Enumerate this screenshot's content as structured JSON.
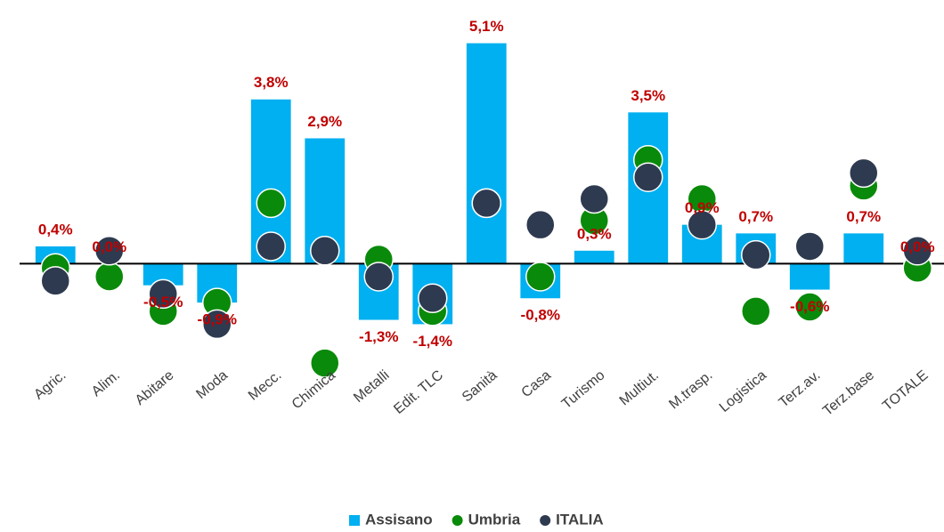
{
  "chart_data": {
    "type": "bar",
    "categories": [
      "Agric.",
      "Alim.",
      "Abitare",
      "Moda",
      "Mecc.",
      "Chimica",
      "Metalli",
      "Edit. TLC",
      "Sanità",
      "Casa",
      "Turismo",
      "Multiut.",
      "M.trasp.",
      "Logistica",
      "Terz.av.",
      "Terz.base",
      "TOTALE"
    ],
    "series": [
      {
        "name": "Assisano",
        "type": "bar",
        "color": "#00b0f0",
        "values": [
          0.4,
          0.0,
          -0.5,
          -0.9,
          3.8,
          2.9,
          -1.3,
          -1.4,
          5.1,
          -0.8,
          0.3,
          3.5,
          0.9,
          0.7,
          -0.6,
          0.7,
          0.0
        ],
        "value_labels": [
          "0,4%",
          "0,0%",
          "-0,5%",
          "-0,9%",
          "3,8%",
          "2,9%",
          "-1,3%",
          "-1,4%",
          "5,1%",
          "-0,8%",
          "0,3%",
          "3,5%",
          "0,9%",
          "0,7%",
          "-0,6%",
          "0,7%",
          "0,0%"
        ]
      },
      {
        "name": "Umbria",
        "type": "scatter",
        "color": "#0a8a0a",
        "values": [
          -0.1,
          -0.3,
          -1.1,
          -0.9,
          1.4,
          -2.3,
          0.1,
          -1.1,
          1.4,
          -0.3,
          1.0,
          2.4,
          1.5,
          -1.1,
          -1.0,
          1.8,
          -0.1
        ]
      },
      {
        "name": "ITALIA",
        "type": "scatter",
        "color": "#2e3a4f",
        "values": [
          -0.4,
          0.3,
          -0.7,
          -1.4,
          0.4,
          0.3,
          -0.3,
          -0.8,
          1.4,
          0.9,
          1.5,
          2.0,
          0.9,
          0.2,
          0.4,
          2.1,
          0.3
        ]
      }
    ],
    "ylim": [
      -2.75,
      6.1
    ]
  }
}
